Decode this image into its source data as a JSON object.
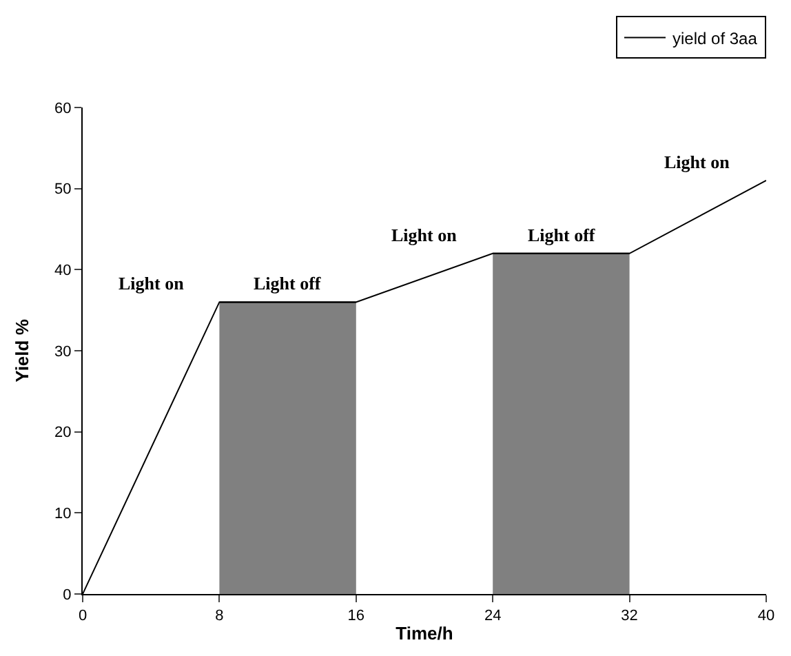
{
  "chart_data": {
    "type": "line",
    "xlabel": "Time/h",
    "ylabel": "Yield %",
    "series": [
      {
        "type": "area",
        "color": "#808080",
        "x": [
          8,
          16
        ],
        "values": [
          36,
          36
        ]
      },
      {
        "type": "area",
        "color": "#808080",
        "x": [
          24,
          32
        ],
        "values": [
          42,
          42
        ]
      },
      {
        "name": "yield of 3aa",
        "color": "#000000",
        "x": [
          0,
          8,
          16,
          24,
          32,
          40
        ],
        "values": [
          0,
          36,
          36,
          42,
          42,
          51
        ]
      }
    ],
    "annotations": [
      "Light on",
      "Light off",
      "Light on",
      "Light off",
      "Light on"
    ],
    "xlim": [
      0,
      40
    ],
    "xticks": [
      0,
      8,
      16,
      24,
      32,
      40
    ],
    "ylim": [
      0,
      60
    ],
    "yticks": [
      0,
      10,
      20,
      30,
      40,
      50,
      60
    ],
    "legend": "top right",
    "marker": "none",
    "line_style": "solid"
  }
}
